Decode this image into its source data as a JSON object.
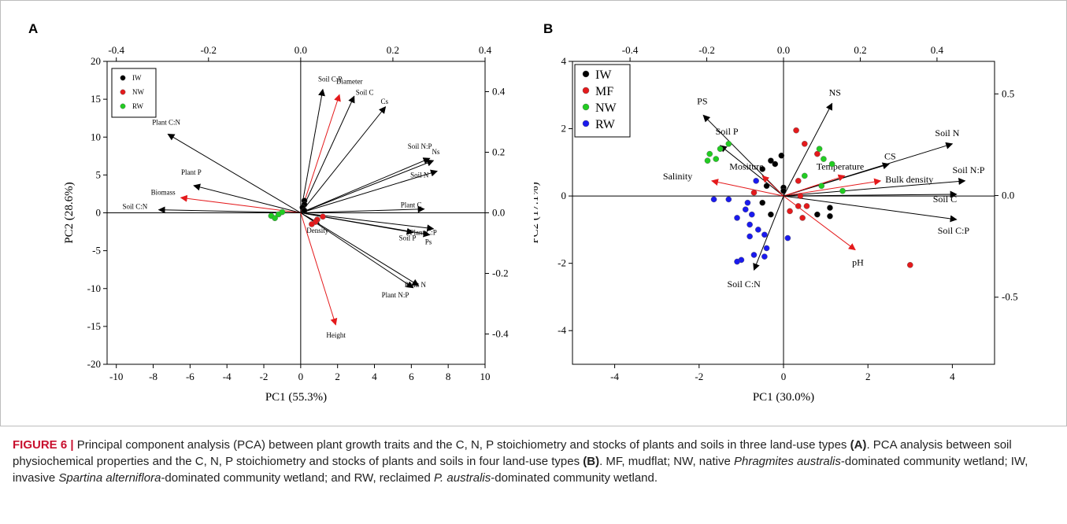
{
  "caption": {
    "label": "FIGURE 6 |",
    "s1": " Principal component analysis (PCA) between plant growth traits and the C, N, P stoichiometry and stocks of plants and soils in three land-use types ",
    "refA": "(A)",
    "s2": ". PCA analysis between soil physiochemical properties and the C, N, P stoichiometry and stocks of plants and soils in four land-use types ",
    "refB": "(B)",
    "s3": ". MF, mudflat; NW, native ",
    "sp1": "Phragmites australis",
    "s4": "-dominated community wetland; IW, invasive ",
    "sp2": "Spartina alterniflora",
    "s5": "-dominated community wetland; and RW, reclaimed ",
    "sp3": "P. australis",
    "s6": "-dominated community wetland."
  },
  "chart_data": [
    {
      "type": "scatter",
      "panel": "A",
      "xlabel": "PC1 (55.3%)",
      "ylabel": "PC2 (28.6%)",
      "xlim": [
        -10.5,
        10
      ],
      "ylim": [
        -20,
        20
      ],
      "xticks": [
        -10,
        -8,
        -6,
        -4,
        -2,
        0,
        2,
        4,
        6,
        8,
        10
      ],
      "yticks": [
        -20,
        -15,
        -10,
        -5,
        0,
        5,
        10,
        15,
        20
      ],
      "top_axis_lim": [
        -0.42,
        0.4
      ],
      "top_ticks": [
        "-0.4",
        "-0.2",
        "0.0",
        "0.2",
        "0.4"
      ],
      "right_axis_lim": [
        -0.5,
        0.5
      ],
      "right_ticks": [
        "0.4",
        "0.2",
        "0.0",
        "-0.2",
        "-0.4"
      ],
      "legend": {
        "position": "top-left",
        "items": [
          {
            "label": "IW",
            "color": "#000000"
          },
          {
            "label": "NW",
            "color": "#e41a1c"
          },
          {
            "label": "RW",
            "color": "#22cc22"
          }
        ]
      },
      "series": [
        {
          "name": "IW",
          "color": "#000000",
          "points": [
            [
              0.2,
              1.6
            ],
            [
              0.2,
              1.1
            ],
            [
              0.1,
              0.7
            ],
            [
              0.2,
              0.3
            ]
          ]
        },
        {
          "name": "NW",
          "color": "#e41a1c",
          "points": [
            [
              1.2,
              -0.5
            ],
            [
              0.9,
              -0.9
            ],
            [
              0.8,
              -1.2
            ],
            [
              0.6,
              -1.5
            ]
          ]
        },
        {
          "name": "RW",
          "color": "#22cc22",
          "points": [
            [
              -1.6,
              -0.4
            ],
            [
              -1.4,
              -0.7
            ],
            [
              -1.2,
              -0.2
            ],
            [
              -1.0,
              0.1
            ]
          ]
        }
      ],
      "loadings": [
        {
          "label": "Soil C:P",
          "x": 1.2,
          "y": 16.3,
          "color": "#000000"
        },
        {
          "label": "Diameter",
          "x": 2.1,
          "y": 15.6,
          "color": "#e41a1c"
        },
        {
          "label": "Soil C",
          "x": 2.9,
          "y": 15.4,
          "color": "#000000"
        },
        {
          "label": "Cs",
          "x": 4.6,
          "y": 14.0,
          "color": "#000000"
        },
        {
          "label": "Plant C:N",
          "x": -7.2,
          "y": 10.4,
          "color": "#000000"
        },
        {
          "label": "Soil N:P",
          "x": 7.0,
          "y": 7.2,
          "color": "#000000"
        },
        {
          "label": "Ns",
          "x": 7.2,
          "y": 6.9,
          "color": "#000000"
        },
        {
          "label": "Soil N",
          "x": 7.4,
          "y": 5.5,
          "color": "#000000"
        },
        {
          "label": "Plant P",
          "x": -5.8,
          "y": 3.6,
          "color": "#000000"
        },
        {
          "label": "Biomass",
          "x": -6.5,
          "y": 2.0,
          "color": "#e41a1c"
        },
        {
          "label": "Soil C:N",
          "x": -7.7,
          "y": 0.4,
          "color": "#000000"
        },
        {
          "label": "Plant C",
          "x": 6.7,
          "y": 0.5,
          "color": "#000000"
        },
        {
          "label": "Plant C:P",
          "x": 7.2,
          "y": -2.1,
          "color": "#000000"
        },
        {
          "label": "Ps",
          "x": 7.0,
          "y": -2.9,
          "color": "#000000"
        },
        {
          "label": "Soil P",
          "x": 6.1,
          "y": -2.6,
          "color": "#000000"
        },
        {
          "label": "Density",
          "x": 1.0,
          "y": -1.4,
          "color": "#000000"
        },
        {
          "label": "Plant N",
          "x": 6.4,
          "y": -9.6,
          "color": "#000000"
        },
        {
          "label": "Plant N:P",
          "x": 6.1,
          "y": -9.9,
          "color": "#000000"
        },
        {
          "label": "Height",
          "x": 1.9,
          "y": -14.8,
          "color": "#e41a1c"
        }
      ]
    },
    {
      "type": "scatter",
      "panel": "B",
      "xlabel": "PC1 (30.0%)",
      "ylabel": "PC2 (17.1%)",
      "xlim": [
        -5,
        5
      ],
      "ylim": [
        -5,
        4
      ],
      "xticks": [
        -4,
        -2,
        0,
        2,
        4
      ],
      "yticks": [
        -4,
        -2,
        0,
        2,
        4
      ],
      "top_axis_lim": [
        -0.55,
        0.55
      ],
      "top_ticks": [
        "-0.4",
        "-0.2",
        "0.0",
        "0.2",
        "0.4"
      ],
      "right_axis_lim": [
        -0.83,
        0.66
      ],
      "right_ticks": [
        "0.5",
        "0.0",
        "-0.5"
      ],
      "legend": {
        "position": "top-left",
        "items": [
          {
            "label": "IW",
            "color": "#000000"
          },
          {
            "label": "MF",
            "color": "#e41a1c"
          },
          {
            "label": "NW",
            "color": "#22cc22"
          },
          {
            "label": "RW",
            "color": "#1a1aee"
          }
        ]
      },
      "series": [
        {
          "name": "IW",
          "color": "#000000",
          "points": [
            [
              -0.5,
              0.8
            ],
            [
              -0.3,
              1.05
            ],
            [
              -0.05,
              1.2
            ],
            [
              -0.2,
              0.95
            ],
            [
              -0.4,
              0.3
            ],
            [
              -0.5,
              -0.2
            ],
            [
              -0.3,
              -0.55
            ],
            [
              0.0,
              0.25
            ],
            [
              0.0,
              0.15
            ],
            [
              0.8,
              -0.55
            ],
            [
              1.1,
              -0.35
            ],
            [
              1.1,
              -0.6
            ]
          ]
        },
        {
          "name": "MF",
          "color": "#e41a1c",
          "points": [
            [
              0.3,
              1.95
            ],
            [
              0.5,
              1.55
            ],
            [
              0.8,
              1.25
            ],
            [
              0.35,
              0.45
            ],
            [
              -0.7,
              0.1
            ],
            [
              0.4,
              0.0
            ],
            [
              0.35,
              -0.3
            ],
            [
              0.55,
              -0.3
            ],
            [
              0.15,
              -0.45
            ],
            [
              0.45,
              -0.65
            ],
            [
              3.0,
              -2.05
            ]
          ]
        },
        {
          "name": "NW",
          "color": "#22cc22",
          "points": [
            [
              -1.8,
              1.05
            ],
            [
              -1.75,
              1.25
            ],
            [
              -1.6,
              1.1
            ],
            [
              -1.5,
              1.4
            ],
            [
              -1.3,
              1.55
            ],
            [
              0.5,
              0.6
            ],
            [
              0.85,
              1.4
            ],
            [
              0.95,
              1.1
            ],
            [
              1.15,
              0.95
            ],
            [
              0.9,
              0.3
            ],
            [
              1.4,
              0.15
            ]
          ]
        },
        {
          "name": "RW",
          "color": "#1a1aee",
          "points": [
            [
              -1.65,
              -0.1
            ],
            [
              -1.3,
              -0.1
            ],
            [
              -0.85,
              -0.2
            ],
            [
              -0.9,
              -0.4
            ],
            [
              -0.75,
              -0.55
            ],
            [
              -1.1,
              -0.65
            ],
            [
              -0.8,
              -0.85
            ],
            [
              -0.6,
              -1.0
            ],
            [
              -0.8,
              -1.2
            ],
            [
              -0.45,
              -1.15
            ],
            [
              -0.7,
              -1.75
            ],
            [
              -0.45,
              -1.8
            ],
            [
              -0.4,
              -1.55
            ],
            [
              -1.0,
              -1.9
            ],
            [
              -1.1,
              -1.95
            ],
            [
              -0.65,
              0.45
            ],
            [
              0.1,
              -1.25
            ]
          ]
        }
      ],
      "loadings": [
        {
          "label": "PS",
          "x": -1.9,
          "y": 2.4,
          "color": "#000000"
        },
        {
          "label": "Soil P",
          "x": -1.5,
          "y": 1.5,
          "color": "#000000"
        },
        {
          "label": "NS",
          "x": 1.15,
          "y": 2.75,
          "color": "#000000"
        },
        {
          "label": "Mositure",
          "x": -0.5,
          "y": 0.6,
          "color": "#e41a1c"
        },
        {
          "label": "Salinity",
          "x": -1.7,
          "y": 0.45,
          "color": "#e41a1c"
        },
        {
          "label": "Soil N",
          "x": 4.0,
          "y": 1.55,
          "color": "#000000"
        },
        {
          "label": "CS",
          "x": 2.5,
          "y": 0.95,
          "color": "#000000"
        },
        {
          "label": "Temperature",
          "x": 1.45,
          "y": 0.6,
          "color": "#e41a1c"
        },
        {
          "label": "Bulk density",
          "x": 2.3,
          "y": 0.45,
          "color": "#e41a1c"
        },
        {
          "label": "Soil N:P",
          "x": 4.3,
          "y": 0.45,
          "color": "#000000"
        },
        {
          "label": "Soil C",
          "x": 4.1,
          "y": 0.05,
          "color": "#000000"
        },
        {
          "label": "Soil C:P",
          "x": 4.1,
          "y": -0.7,
          "color": "#000000"
        },
        {
          "label": "pH",
          "x": 1.7,
          "y": -1.6,
          "color": "#e41a1c"
        },
        {
          "label": "Soil C:N",
          "x": -0.7,
          "y": -2.2,
          "color": "#000000"
        }
      ]
    }
  ]
}
